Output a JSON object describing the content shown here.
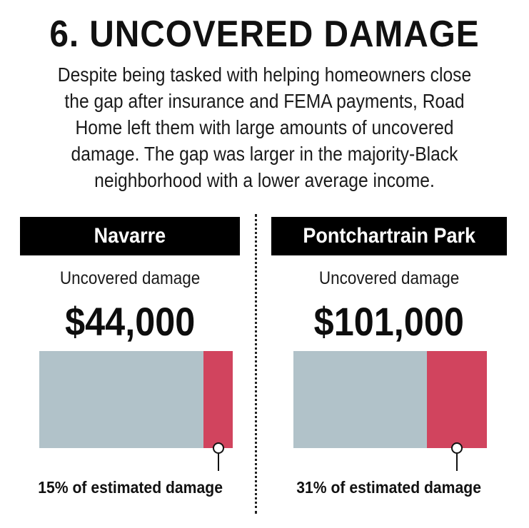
{
  "title": "6. UNCOVERED DAMAGE",
  "intro_lines": [
    "Despite being tasked with helping homeowners close",
    "the gap after insurance and FEMA payments, Road",
    "Home left them with large amounts of uncovered",
    "damage. The gap was larger in the majority-Black",
    "neighborhood with a lower average income."
  ],
  "panels": [
    {
      "name": "Navarre",
      "label": "Uncovered damage",
      "amount": "$44,000",
      "share": 0.15,
      "caption": "15% of estimated damage"
    },
    {
      "name": "Pontchartrain Park",
      "label": "Uncovered damage",
      "amount": "$101,000",
      "share": 0.31,
      "caption": "31% of estimated damage"
    }
  ],
  "colors": {
    "covered": "#b1c2c9",
    "uncovered": "#d1445e",
    "header_bg": "#000000",
    "header_text": "#ffffff"
  }
}
